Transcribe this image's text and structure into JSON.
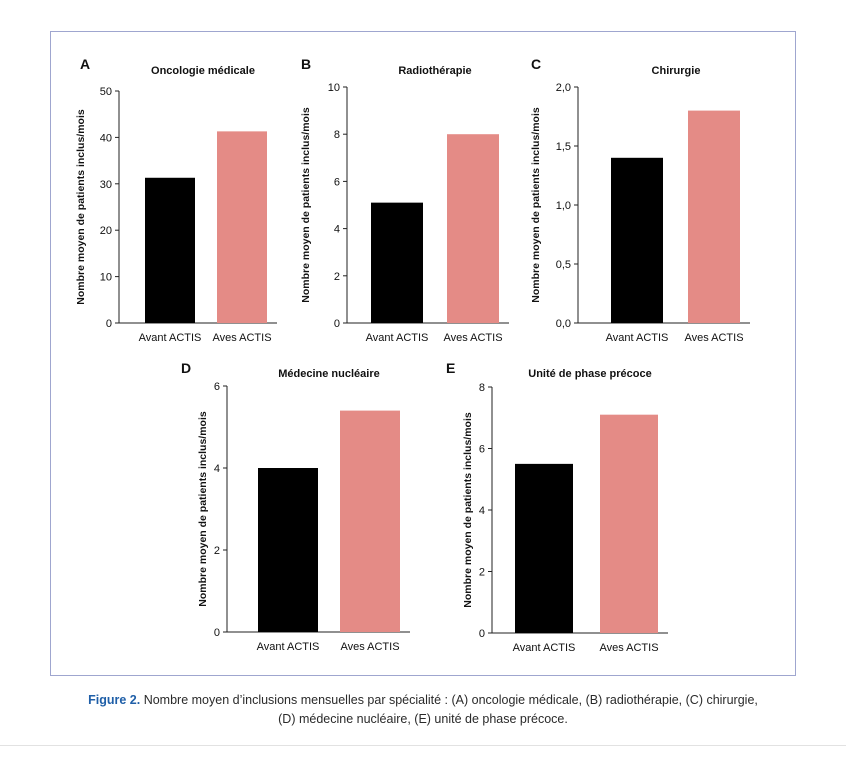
{
  "caption": {
    "lead": "Figure 2.",
    "line1": "Nombre moyen d’inclusions mensuelles par spécialité : (A) oncologie médicale, (B) radiothérapie, (C) chirurgie,",
    "line2": "(D) médecine nucléaire, (E) unité de phase précoce."
  },
  "colors": {
    "before": "#000000",
    "after": "#e48b86",
    "axis": "#222222",
    "frame": "#9fa6cf",
    "caption_lead": "#1f5fa8"
  },
  "chart_data": [
    {
      "type": "bar",
      "panel_letter": "A",
      "title": "Oncologie médicale",
      "categories": [
        "Avant ACTIS",
        "Aves ACTIS"
      ],
      "values": [
        31.3,
        41.3
      ],
      "xlabel": "",
      "ylabel": "Nombre moyen de patients inclus/mois",
      "ylim": [
        0,
        50
      ],
      "ticks": [
        0,
        10,
        20,
        30,
        40,
        50
      ],
      "tick_labels": [
        "0",
        "10",
        "20",
        "30",
        "40",
        "50"
      ],
      "grid": false,
      "legend": "none"
    },
    {
      "type": "bar",
      "panel_letter": "B",
      "title": "Radiothérapie",
      "categories": [
        "Avant ACTIS",
        "Aves ACTIS"
      ],
      "values": [
        5.1,
        8.0
      ],
      "xlabel": "",
      "ylabel": "Nombre moyen de patients inclus/mois",
      "ylim": [
        0,
        10
      ],
      "ticks": [
        0,
        2,
        4,
        6,
        8,
        10
      ],
      "tick_labels": [
        "0",
        "2",
        "4",
        "6",
        "8",
        "10"
      ],
      "grid": false,
      "legend": "none"
    },
    {
      "type": "bar",
      "panel_letter": "C",
      "title": "Chirurgie",
      "categories": [
        "Avant ACTIS",
        "Aves ACTIS"
      ],
      "values": [
        1.4,
        1.8
      ],
      "xlabel": "",
      "ylabel": "Nombre moyen de patients inclus/mois",
      "ylim": [
        0,
        2
      ],
      "ticks": [
        0,
        0.5,
        1,
        1.5,
        2
      ],
      "tick_labels": [
        "0,0",
        "0,5",
        "1,0",
        "1,5",
        "2,0"
      ],
      "grid": false,
      "legend": "none"
    },
    {
      "type": "bar",
      "panel_letter": "D",
      "title": "Médecine nucléaire",
      "categories": [
        "Avant ACTIS",
        "Aves ACTIS"
      ],
      "values": [
        4.0,
        5.4
      ],
      "xlabel": "",
      "ylabel": "Nombre moyen de patients inclus/mois",
      "ylim": [
        0,
        6
      ],
      "ticks": [
        0,
        2,
        4,
        6
      ],
      "tick_labels": [
        "0",
        "2",
        "4",
        "6"
      ],
      "grid": false,
      "legend": "none"
    },
    {
      "type": "bar",
      "panel_letter": "E",
      "title": "Unité de phase précoce",
      "categories": [
        "Avant ACTIS",
        "Aves ACTIS"
      ],
      "values": [
        5.5,
        7.1
      ],
      "xlabel": "",
      "ylabel": "Nombre moyen de patients inclus/mois",
      "ylim": [
        0,
        8
      ],
      "ticks": [
        0,
        2,
        4,
        6,
        8
      ],
      "tick_labels": [
        "0",
        "2",
        "4",
        "6",
        "8"
      ],
      "grid": false,
      "legend": "none"
    }
  ]
}
